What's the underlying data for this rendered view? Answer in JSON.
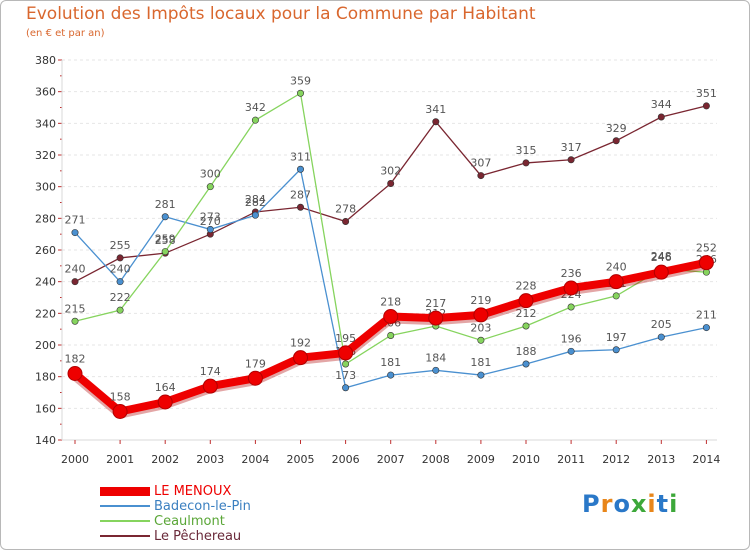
{
  "header": {
    "title": "Evolution des Impôts locaux pour la Commune par Habitant",
    "subtitle": "(en € et par an)"
  },
  "logo": {
    "text": "Proxiti"
  },
  "colors": {
    "title": "#d9672e",
    "axis": "#d8d8d8",
    "grid": "#e6e6e6",
    "tick_text": "#333333",
    "value_text": "#555555"
  },
  "chart_data": {
    "type": "line",
    "title": "Evolution des Impôts locaux pour la Commune par Habitant",
    "subtitle": "(en € et par an)",
    "x": [
      "2000",
      "2001",
      "2002",
      "2003",
      "2004",
      "2005",
      "2006",
      "2007",
      "2008",
      "2009",
      "2010",
      "2011",
      "2012",
      "2013",
      "2014"
    ],
    "ylim": [
      140,
      380
    ],
    "yticks": [
      140,
      160,
      180,
      200,
      220,
      240,
      260,
      280,
      300,
      320,
      340,
      360,
      380
    ],
    "grid": "horizontal dashed",
    "legend_position": "bottom-left",
    "series": [
      {
        "name": "Le Pêchereau",
        "color": "#7a2631",
        "highlight": false,
        "values": [
          240,
          255,
          258,
          270,
          284,
          287,
          278,
          302,
          341,
          307,
          315,
          317,
          329,
          344,
          351
        ]
      },
      {
        "name": "Badecon-le-Pin",
        "color": "#4a90d0",
        "highlight": false,
        "values": [
          271,
          240,
          281,
          273,
          282,
          311,
          173,
          181,
          184,
          181,
          188,
          196,
          197,
          205,
          211
        ]
      },
      {
        "name": "Ceaulmont",
        "color": "#86d45e",
        "highlight": false,
        "values": [
          215,
          222,
          259,
          300,
          342,
          359,
          188,
          206,
          212,
          203,
          212,
          224,
          231,
          248,
          246
        ]
      },
      {
        "name": "LE MENOUX",
        "color": "#ee0000",
        "highlight": true,
        "values": [
          182,
          158,
          164,
          174,
          179,
          192,
          195,
          218,
          217,
          219,
          228,
          236,
          240,
          246,
          252
        ]
      }
    ],
    "legend_order": [
      "LE MENOUX",
      "Badecon-le-Pin",
      "Ceaulmont",
      "Le Pêchereau"
    ]
  }
}
